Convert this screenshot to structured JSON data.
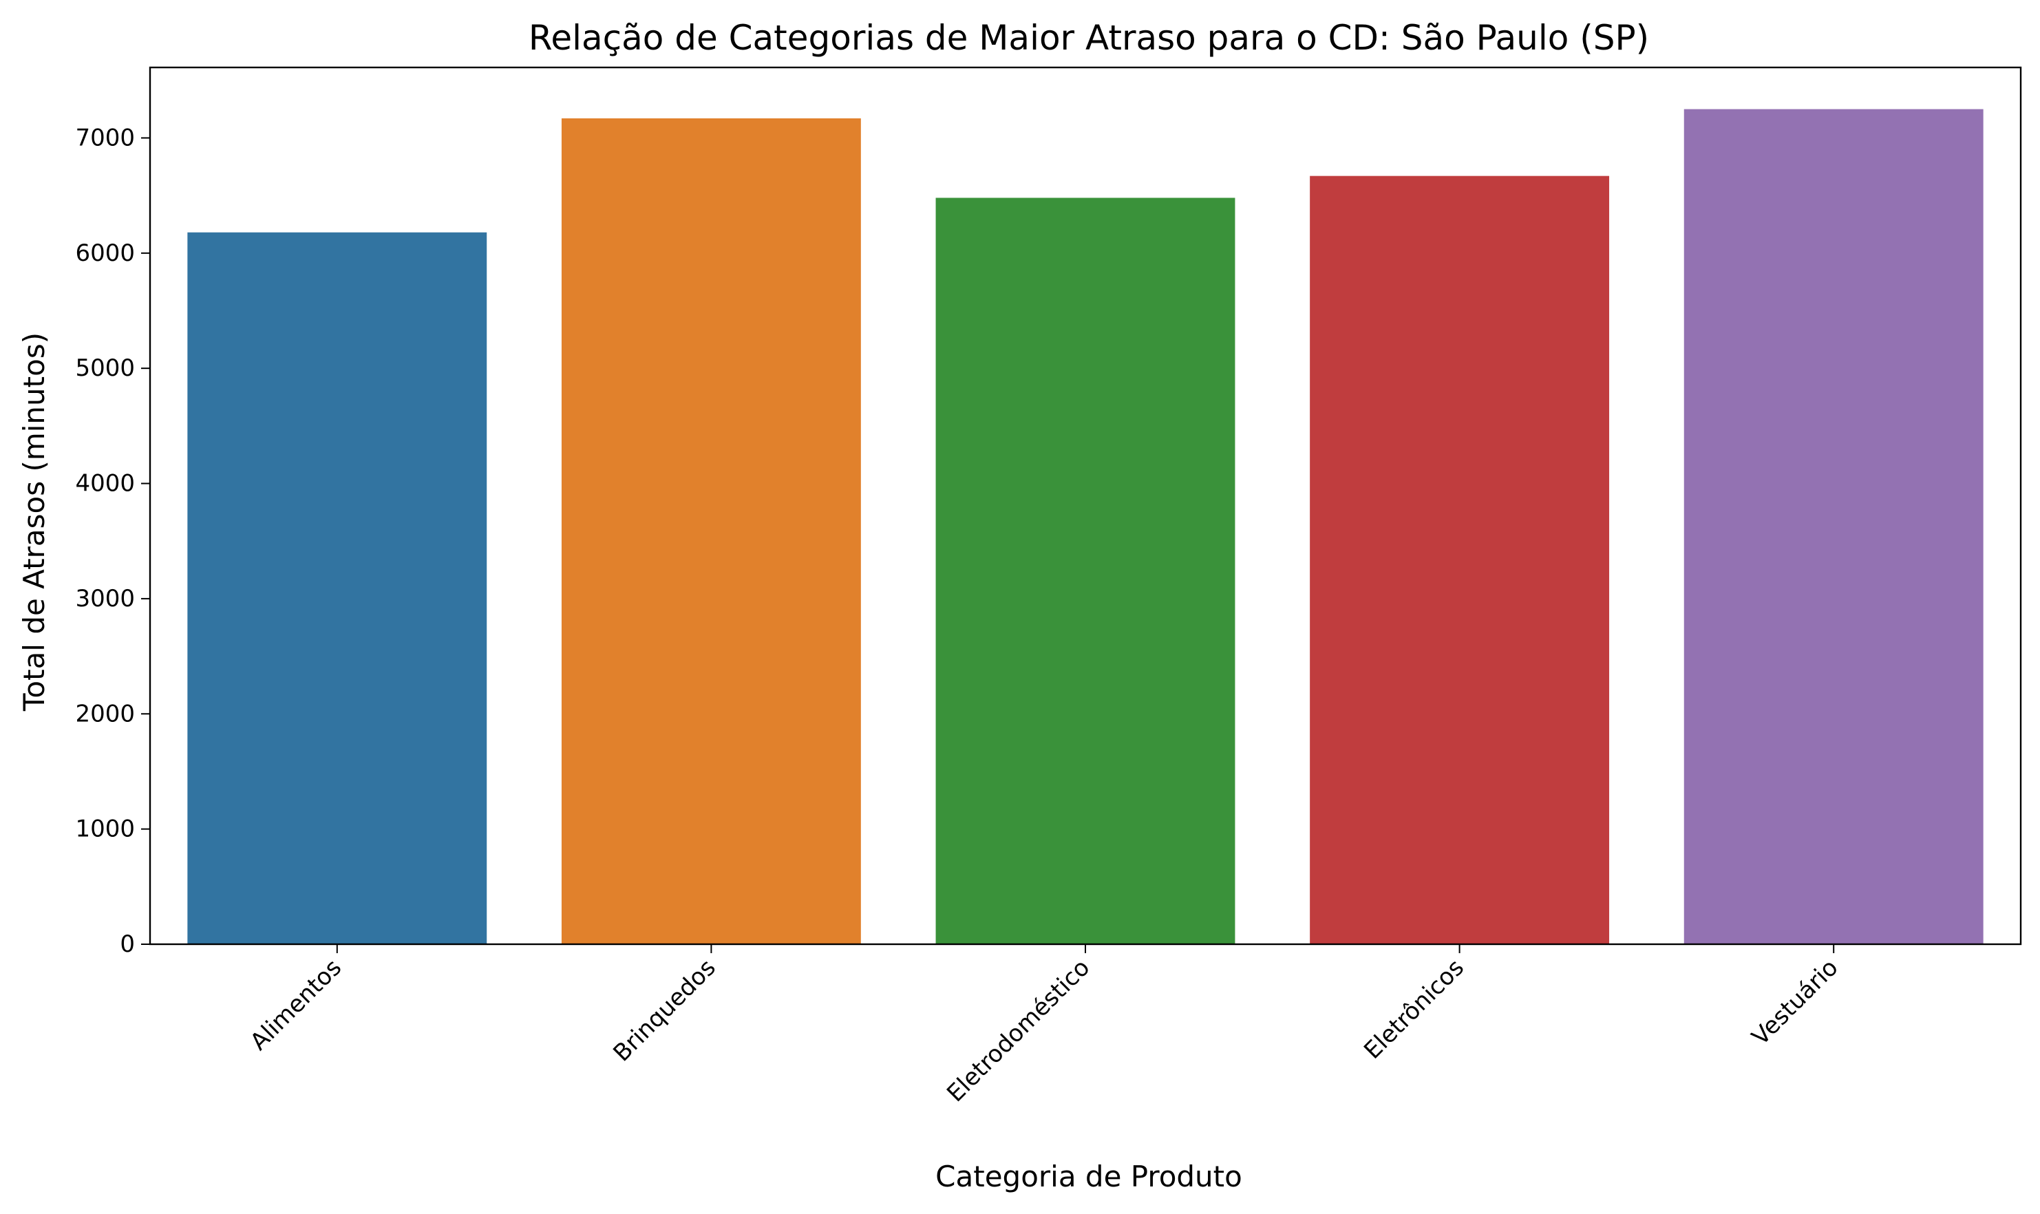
{
  "chart_data": {
    "type": "bar",
    "title": "Relação de Categorias de Maior Atraso para o CD: São Paulo (SP)",
    "xlabel": "Categoria de Produto",
    "ylabel": "Total de Atrasos (minutos)",
    "categories": [
      "Alimentos",
      "Brinquedos",
      "Eletrodoméstico",
      "Eletrônicos",
      "Vestuário"
    ],
    "values": [
      6180,
      7170,
      6480,
      6670,
      7250
    ],
    "colors": [
      "#3274a1",
      "#e1812c",
      "#3a923a",
      "#c03d3e",
      "#9372b2"
    ],
    "ylim": [
      0,
      7612
    ],
    "yticks": [
      0,
      1000,
      2000,
      3000,
      4000,
      5000,
      6000,
      7000
    ],
    "grid": false,
    "legend": false
  }
}
